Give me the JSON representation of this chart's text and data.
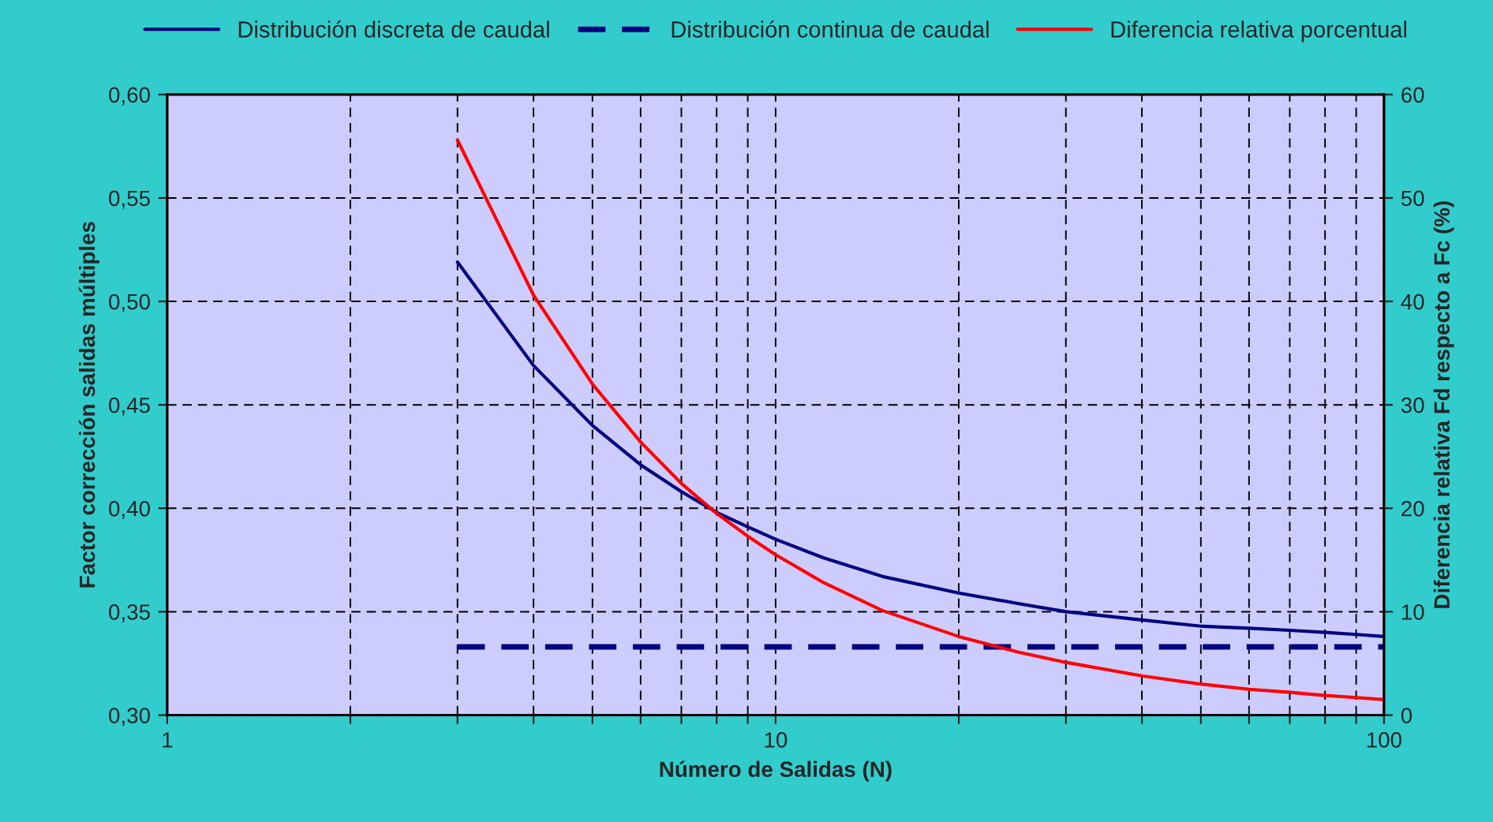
{
  "chart_data": {
    "type": "line",
    "xlabel": "Número de Salidas (N)",
    "ylabel": "Factor corrección salidas múltiples",
    "y2label": "Diferencia relativa Fd respecto a Fc (%)",
    "log": "x",
    "xlim": [
      1,
      100
    ],
    "xticks": [
      1,
      {
        "value": 2,
        "label": null
      },
      {
        "value": 3,
        "label": null
      },
      {
        "value": 4,
        "label": null
      },
      {
        "value": 5,
        "label": null
      },
      {
        "value": 6,
        "label": null
      },
      {
        "value": 7,
        "label": null
      },
      {
        "value": 8,
        "label": null
      },
      {
        "value": 9,
        "label": null
      },
      10,
      {
        "value": 20,
        "label": null
      },
      {
        "value": 30,
        "label": null
      },
      {
        "value": 40,
        "label": null
      },
      {
        "value": 50,
        "label": null
      },
      {
        "value": 60,
        "label": null
      },
      {
        "value": 70,
        "label": null
      },
      {
        "value": 80,
        "label": null
      },
      {
        "value": 90,
        "label": null
      },
      100
    ],
    "ylim": [
      0.3,
      0.6
    ],
    "yticks": [
      {
        "value": 0.3,
        "label": "0,30"
      },
      {
        "value": 0.35,
        "label": "0,35"
      },
      {
        "value": 0.4,
        "label": "0,40"
      },
      {
        "value": 0.45,
        "label": "0,45"
      },
      {
        "value": 0.5,
        "label": "0,50"
      },
      {
        "value": 0.55,
        "label": "0,55"
      },
      {
        "value": 0.6,
        "label": "0,60"
      }
    ],
    "y2lim": [
      0,
      60
    ],
    "y2ticks": [
      0,
      10,
      20,
      30,
      40,
      50,
      60
    ],
    "grid": true,
    "legend": "top",
    "x": [
      3,
      4,
      5,
      6,
      7,
      8,
      9,
      10,
      12,
      15,
      20,
      25,
      30,
      40,
      50,
      60,
      70,
      80,
      90,
      100
    ],
    "series": [
      {
        "name": "Distribución discreta de caudal",
        "color": "#000080",
        "line_style": "solid",
        "values": [
          0.519,
          0.469,
          0.44,
          0.421,
          0.408,
          0.398,
          0.391,
          0.385,
          0.376,
          0.367,
          0.359,
          0.354,
          0.35,
          0.346,
          0.343,
          0.342,
          0.341,
          0.34,
          0.339,
          0.338
        ]
      },
      {
        "name": "Distribución continua de caudal",
        "color": "#000080",
        "line_style": "dashed",
        "x": [
          3,
          100
        ],
        "values": [
          0.333,
          0.333
        ]
      },
      {
        "name": "Diferencia relativa porcentual",
        "color": "#ff0000",
        "line_style": "solid",
        "axis": "y2",
        "values": [
          55.6,
          40.6,
          32.0,
          26.4,
          22.4,
          19.5,
          17.3,
          15.5,
          12.8,
          10.1,
          7.6,
          6.1,
          5.1,
          3.8,
          3.0,
          2.5,
          2.2,
          1.9,
          1.7,
          1.5
        ]
      }
    ]
  }
}
